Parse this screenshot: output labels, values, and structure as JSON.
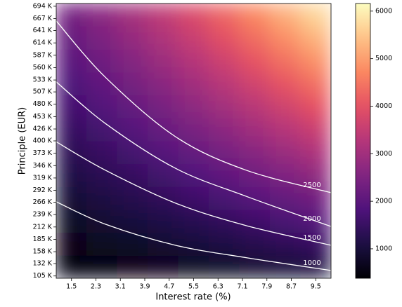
{
  "chart_data": {
    "type": "heatmap",
    "xlabel": "Interest rate (%)",
    "ylabel": "Principle (EUR)",
    "colormap": "magma",
    "xlim": [
      1,
      10
    ],
    "ylim": [
      100000,
      700000
    ],
    "xticks": [
      1.5,
      2.3,
      3.1,
      3.9,
      4.7,
      5.5,
      6.3,
      7.1,
      7.9,
      8.7,
      9.5
    ],
    "yticks": [
      {
        "value": 105000,
        "label": "105 K"
      },
      {
        "value": 132000,
        "label": "132 K"
      },
      {
        "value": 158000,
        "label": "158 K"
      },
      {
        "value": 185000,
        "label": "185 K"
      },
      {
        "value": 212000,
        "label": "212 K"
      },
      {
        "value": 239000,
        "label": "239 K"
      },
      {
        "value": 266000,
        "label": "266 K"
      },
      {
        "value": 292000,
        "label": "292 K"
      },
      {
        "value": 319000,
        "label": "319 K"
      },
      {
        "value": 346000,
        "label": "346 K"
      },
      {
        "value": 373000,
        "label": "373 K"
      },
      {
        "value": 400000,
        "label": "400 K"
      },
      {
        "value": 426000,
        "label": "426 K"
      },
      {
        "value": 453000,
        "label": "453 K"
      },
      {
        "value": 480000,
        "label": "480 K"
      },
      {
        "value": 507000,
        "label": "507 K"
      },
      {
        "value": 533000,
        "label": "533 K"
      },
      {
        "value": 560000,
        "label": "560 K"
      },
      {
        "value": 587000,
        "label": "587 K"
      },
      {
        "value": 614000,
        "label": "614 K"
      },
      {
        "value": 641000,
        "label": "641 K"
      },
      {
        "value": 667000,
        "label": "667 K"
      },
      {
        "value": 694000,
        "label": "694 K"
      }
    ],
    "x_edges": [
      1,
      2,
      3,
      4,
      5,
      6,
      7,
      8,
      9,
      10
    ],
    "y_edges": [
      100000,
      150000,
      200000,
      250000,
      300000,
      350000,
      400000,
      450000,
      500000,
      550000,
      600000,
      650000,
      700000
    ],
    "z": [
      [
        431,
        494,
        561,
        633,
        710,
        790,
        874,
        961,
        1051
      ],
      [
        604,
        691,
        786,
        887,
        994,
        1106,
        1224,
        1346,
        1472
      ],
      [
        776,
        889,
        1010,
        1140,
        1278,
        1422,
        1573,
        1730,
        1892
      ],
      [
        949,
        1087,
        1235,
        1393,
        1561,
        1738,
        1923,
        2114,
        2312
      ],
      [
        1122,
        1284,
        1459,
        1647,
        1845,
        2054,
        2272,
        2499,
        2733
      ],
      [
        1294,
        1482,
        1684,
        1900,
        2129,
        2370,
        2622,
        2883,
        3153
      ],
      [
        1467,
        1679,
        1908,
        2153,
        2413,
        2686,
        2972,
        3268,
        3574
      ],
      [
        1639,
        1877,
        2133,
        2407,
        2697,
        3002,
        3321,
        3652,
        3994
      ],
      [
        1812,
        2074,
        2357,
        2660,
        2981,
        3319,
        3671,
        4037,
        4415
      ],
      [
        1984,
        2272,
        2582,
        2914,
        3265,
        3635,
        4020,
        4421,
        4835
      ],
      [
        2157,
        2469,
        2806,
        3167,
        3549,
        3951,
        4370,
        4806,
        5256
      ],
      [
        2329,
        2667,
        3031,
        3420,
        3833,
        4267,
        4719,
        5190,
        5676
      ]
    ],
    "clim": [
      380,
      6160
    ],
    "cticks": [
      1000,
      2000,
      3000,
      4000,
      5000,
      6000
    ],
    "contours": [
      {
        "level": 1000,
        "x": [
          1,
          2.61,
          4.91,
          7.22,
          10
        ],
        "y": [
          267000,
          218000,
          172000,
          145000,
          117000
        ]
      },
      {
        "level": 1500,
        "x": [
          1,
          2.61,
          4.91,
          7.22,
          10
        ],
        "y": [
          398000,
          336000,
          264000,
          215000,
          172000
        ]
      },
      {
        "level": 2000,
        "x": [
          1,
          2.61,
          4.91,
          7.22,
          10
        ],
        "y": [
          529000,
          438000,
          340000,
          279000,
          213000
        ]
      },
      {
        "level": 2500,
        "x": [
          1,
          2.61,
          4.91,
          7.22,
          10
        ],
        "y": [
          662000,
          539000,
          409000,
          336000,
          287000
        ]
      }
    ],
    "contour_color": "#ffffff"
  }
}
